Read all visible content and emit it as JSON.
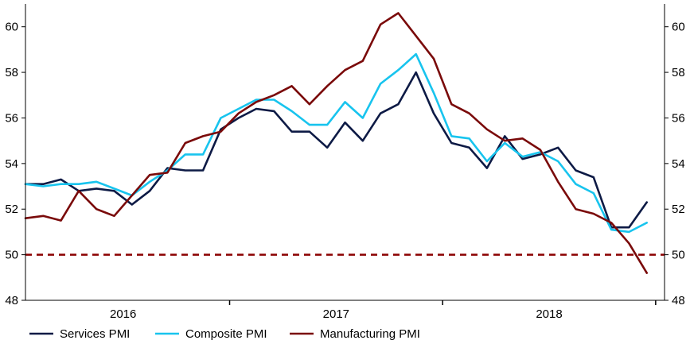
{
  "chart_data": {
    "type": "line",
    "title": "",
    "xlabel": "",
    "ylabel": "",
    "ylim": [
      48,
      61
    ],
    "yticks": [
      "48",
      "50",
      "52",
      "54",
      "56",
      "58",
      "60"
    ],
    "ytick_values": [
      48,
      50,
      52,
      54,
      56,
      58,
      60
    ],
    "year_labels": [
      {
        "label": "2016",
        "month_index": 5.5
      },
      {
        "label": "2017",
        "month_index": 17.5
      },
      {
        "label": "2018",
        "month_index": 29.5
      }
    ],
    "year_separators": [
      11.5,
      23.5,
      35.5
    ],
    "x_range": [
      0,
      36
    ],
    "reference_line": {
      "value": 50,
      "color": "#8b0000",
      "style": "dashed"
    },
    "legend_position": "bottom",
    "series": [
      {
        "name": "Services PMI",
        "color": "#0d1a45",
        "values": [
          53.1,
          53.1,
          53.3,
          52.8,
          52.9,
          52.8,
          52.2,
          52.8,
          53.8,
          53.7,
          53.7,
          55.5,
          56.0,
          56.4,
          56.3,
          55.4,
          55.4,
          54.7,
          55.8,
          55.0,
          56.2,
          56.6,
          58.0,
          56.2,
          54.9,
          54.7,
          53.8,
          55.2,
          54.2,
          54.4,
          54.7,
          53.7,
          53.4,
          51.2,
          51.2,
          52.3
        ]
      },
      {
        "name": "Composite PMI",
        "color": "#18c4ee",
        "values": [
          53.1,
          53.0,
          53.1,
          53.1,
          53.2,
          52.9,
          52.6,
          53.2,
          53.7,
          54.4,
          54.4,
          56.0,
          56.4,
          56.8,
          56.8,
          56.3,
          55.7,
          55.7,
          56.7,
          56.0,
          57.5,
          58.1,
          58.8,
          57.1,
          55.2,
          55.1,
          54.1,
          54.9,
          54.3,
          54.5,
          54.1,
          53.1,
          52.7,
          51.1,
          51.0,
          51.4
        ]
      },
      {
        "name": "Manufacturing PMI",
        "color": "#7a0a0a",
        "values": [
          51.6,
          51.7,
          51.5,
          52.8,
          52.0,
          51.7,
          52.6,
          53.5,
          53.6,
          54.9,
          55.2,
          55.4,
          56.2,
          56.7,
          57.0,
          57.4,
          56.6,
          57.4,
          58.1,
          58.5,
          60.1,
          60.6,
          59.6,
          58.6,
          56.6,
          56.2,
          55.5,
          55.0,
          55.1,
          54.6,
          53.2,
          52.0,
          51.8,
          51.4,
          50.5,
          49.2
        ]
      }
    ]
  }
}
